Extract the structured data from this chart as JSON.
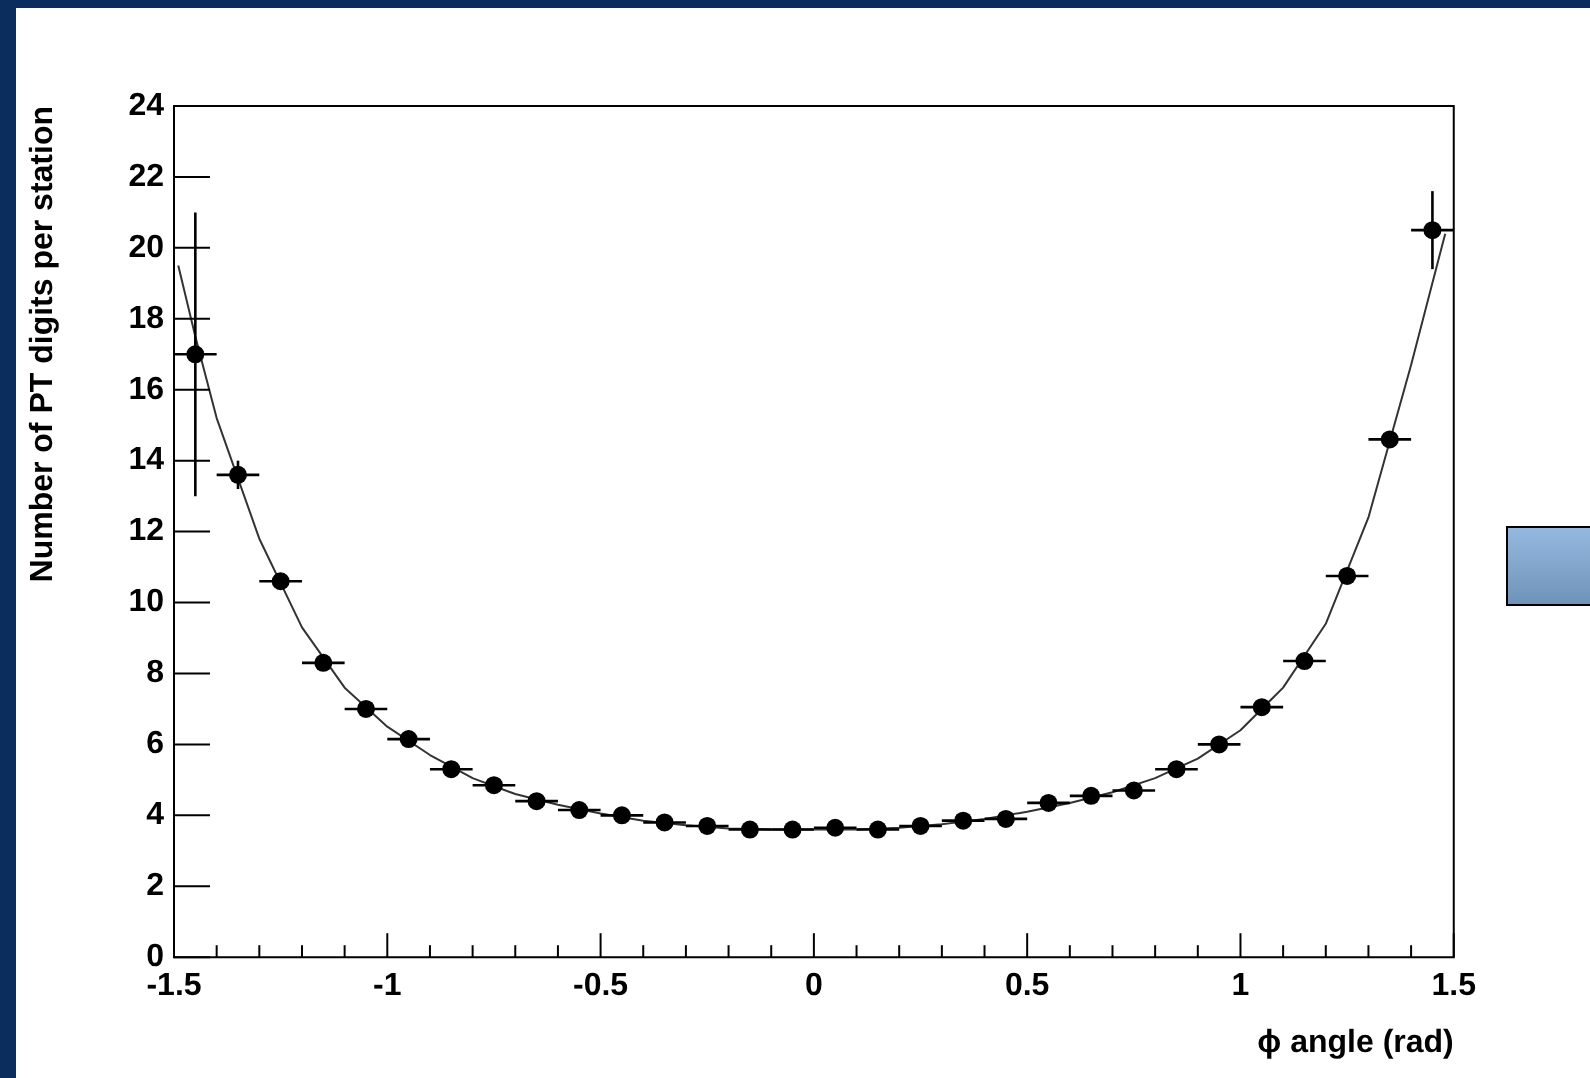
{
  "chart_data": {
    "type": "scatter",
    "xlabel": "ϕ angle (rad)",
    "ylabel": "Number of PT digits per station",
    "xlim": [
      -1.5,
      1.5
    ],
    "ylim": [
      0,
      24
    ],
    "xticks": [
      -1.5,
      {
        "value": -1.4,
        "label": null
      },
      {
        "value": -1.3,
        "label": null
      },
      {
        "value": -1.2,
        "label": null
      },
      {
        "value": -1.1,
        "label": null
      },
      -1,
      {
        "value": -0.9,
        "label": null
      },
      {
        "value": -0.8,
        "label": null
      },
      {
        "value": -0.7,
        "label": null
      },
      {
        "value": -0.6,
        "label": null
      },
      -0.5,
      {
        "value": -0.4,
        "label": null
      },
      {
        "value": -0.3,
        "label": null
      },
      {
        "value": -0.2,
        "label": null
      },
      {
        "value": -0.1,
        "label": null
      },
      0,
      {
        "value": 0.1,
        "label": null
      },
      {
        "value": 0.2,
        "label": null
      },
      {
        "value": 0.3,
        "label": null
      },
      {
        "value": 0.4,
        "label": null
      },
      0.5,
      {
        "value": 0.6,
        "label": null
      },
      {
        "value": 0.7,
        "label": null
      },
      {
        "value": 0.8,
        "label": null
      },
      {
        "value": 0.9,
        "label": null
      },
      1,
      {
        "value": 1.1,
        "label": null
      },
      {
        "value": 1.2,
        "label": null
      },
      {
        "value": 1.3,
        "label": null
      },
      {
        "value": 1.4,
        "label": null
      },
      1.5
    ],
    "yticks": [
      0,
      2,
      4,
      6,
      8,
      10,
      12,
      14,
      16,
      18,
      20,
      22,
      24
    ],
    "grid": false,
    "legend": false,
    "marker": "circle",
    "series": [
      {
        "type": "scatter",
        "color": "#000000",
        "x": [
          -1.45,
          -1.35,
          -1.25,
          -1.15,
          -1.05,
          -0.95,
          -0.85,
          -0.75,
          -0.65,
          -0.55,
          -0.45,
          -0.35,
          -0.25,
          -0.15,
          -0.05,
          0.05,
          0.15,
          0.25,
          0.35,
          0.45,
          0.55,
          0.65,
          0.75,
          0.85,
          0.95,
          1.05,
          1.15,
          1.25,
          1.35,
          1.45
        ],
        "values": [
          17.0,
          13.6,
          10.6,
          8.3,
          7.0,
          6.15,
          5.3,
          4.85,
          4.4,
          4.15,
          4.0,
          3.8,
          3.7,
          3.6,
          3.6,
          3.65,
          3.6,
          3.7,
          3.85,
          3.9,
          4.35,
          4.55,
          4.7,
          5.3,
          6.0,
          7.05,
          8.35,
          10.75,
          14.6,
          20.5
        ],
        "errors": [
          4,
          0.4,
          null,
          null,
          null,
          null,
          null,
          null,
          null,
          null,
          null,
          null,
          null,
          null,
          null,
          null,
          null,
          null,
          null,
          null,
          null,
          null,
          null,
          null,
          null,
          null,
          null,
          null,
          0.2,
          1.1
        ],
        "xerrors": [
          0.05,
          0.05,
          0.05,
          0.05,
          0.05,
          0.05,
          0.05,
          0.05,
          0.05,
          0.05,
          0.05,
          0.05,
          0.05,
          0.05,
          0.05,
          0.05,
          0.05,
          0.05,
          0.05,
          0.05,
          0.05,
          0.05,
          0.05,
          0.05,
          0.05,
          0.05,
          0.05,
          0.05,
          0.05,
          0.05
        ]
      },
      {
        "type": "line",
        "color": "#333333",
        "marker": "none",
        "line_style": "solid",
        "x": [
          -1.49,
          -1.45,
          -1.4,
          -1.3,
          -1.2,
          -1.1,
          -1.0,
          -0.9,
          -0.8,
          -0.7,
          -0.6,
          -0.5,
          -0.4,
          -0.3,
          -0.2,
          -0.1,
          0,
          0.1,
          0.2,
          0.3,
          0.4,
          0.5,
          0.6,
          0.7,
          0.8,
          0.9,
          1.0,
          1.1,
          1.2,
          1.3,
          1.4,
          1.48
        ],
        "values": [
          19.5,
          17.5,
          15.2,
          11.8,
          9.3,
          7.6,
          6.5,
          5.7,
          5.05,
          4.6,
          4.3,
          4.05,
          3.85,
          3.72,
          3.63,
          3.6,
          3.6,
          3.6,
          3.65,
          3.75,
          3.9,
          4.1,
          4.35,
          4.65,
          5.05,
          5.6,
          6.4,
          7.6,
          9.4,
          12.4,
          16.7,
          20.4
        ]
      }
    ]
  }
}
